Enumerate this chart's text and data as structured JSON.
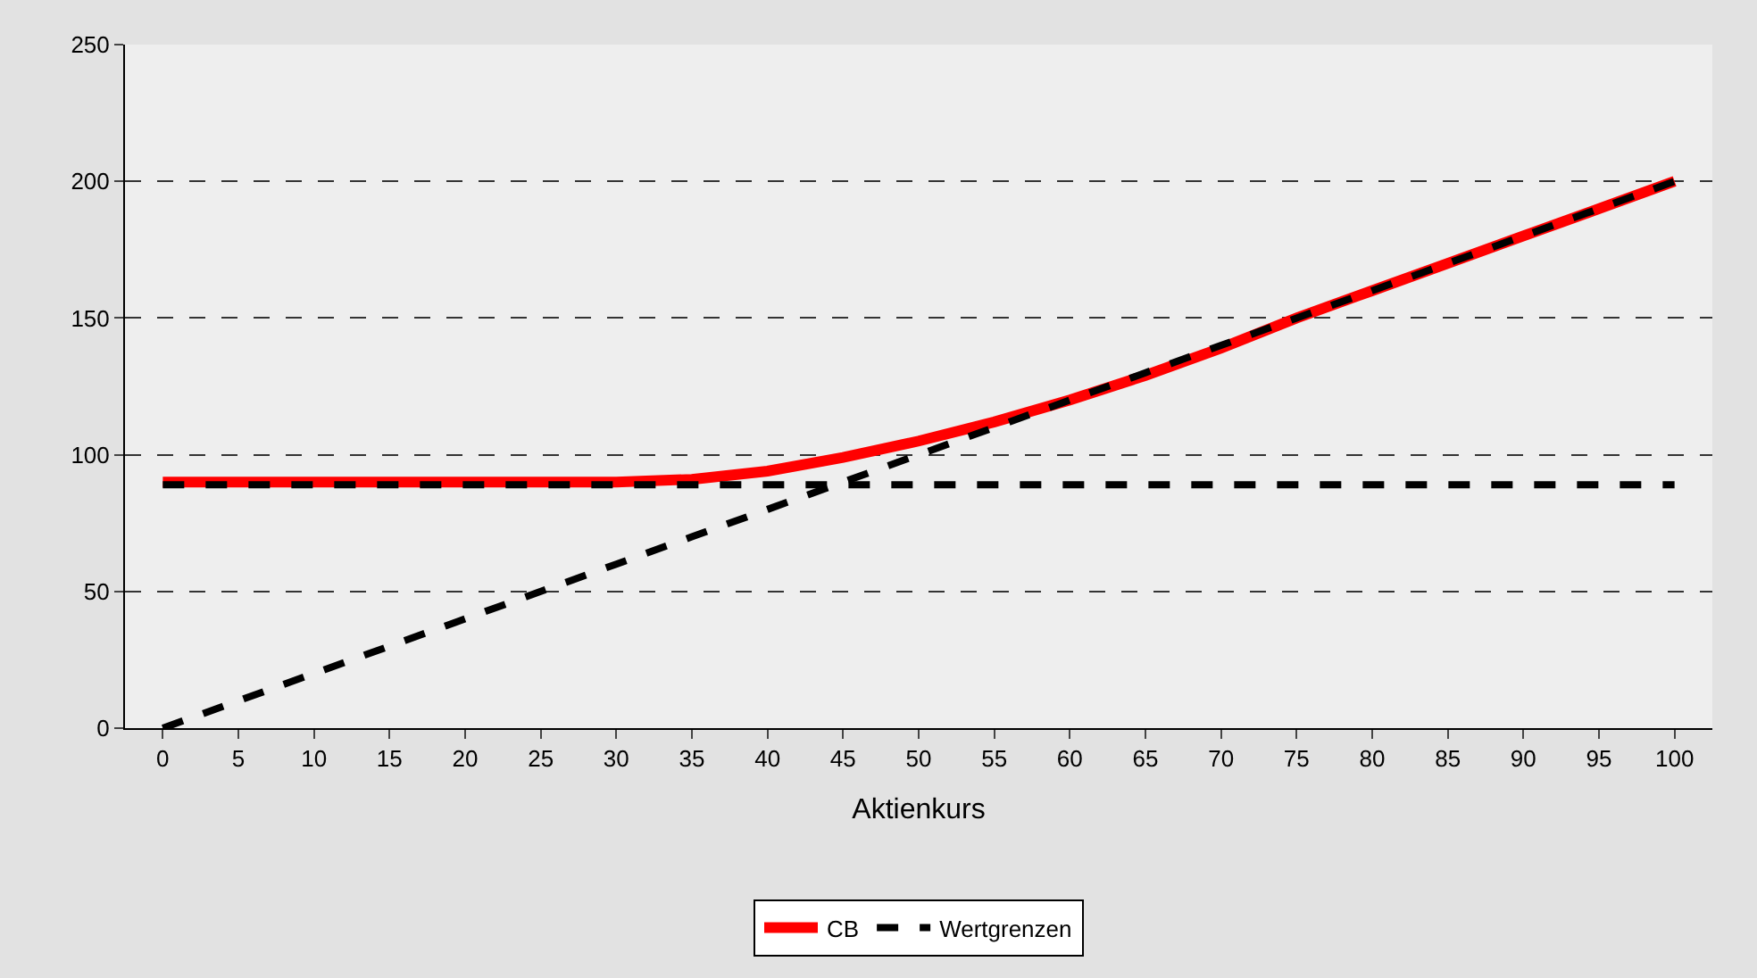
{
  "chart_data": {
    "type": "line",
    "xlabel": "Aktienkurs",
    "categories": [
      "0",
      "5",
      "10",
      "15",
      "20",
      "25",
      "30",
      "35",
      "40",
      "45",
      "50",
      "55",
      "60",
      "65",
      "70",
      "75",
      "80",
      "85",
      "90",
      "95",
      "100"
    ],
    "series": [
      {
        "name": "CB",
        "color": "#ff0000",
        "line_style": "solid",
        "values": [
          90,
          90,
          90,
          90,
          90,
          90,
          90,
          91,
          94,
          99,
          105,
          112,
          120,
          129,
          139,
          150,
          160,
          170,
          180,
          190,
          200
        ]
      },
      {
        "name": "Wertgrenzen",
        "color": "#000000",
        "line_style": "dashed",
        "values": [
          89,
          89,
          89,
          89,
          89,
          89,
          89,
          89,
          89,
          89,
          89,
          89,
          89,
          89,
          89,
          89,
          89,
          89,
          89,
          89,
          89
        ]
      },
      {
        "color": "#000000",
        "line_style": "dashed",
        "values": [
          0,
          10,
          20,
          30,
          40,
          50,
          60,
          70,
          80,
          90,
          100,
          110,
          120,
          130,
          140,
          150,
          160,
          170,
          180,
          190,
          200
        ]
      }
    ],
    "ylim": [
      0,
      250
    ],
    "yticks": [
      0,
      50,
      100,
      150,
      200,
      250
    ],
    "grid": "y",
    "legend": "bottom",
    "marker": "none"
  }
}
